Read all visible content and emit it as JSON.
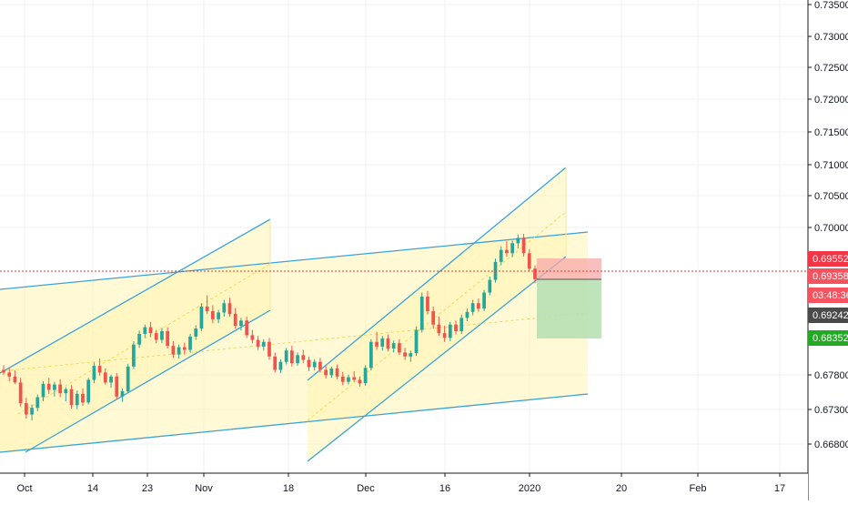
{
  "chart_data": {
    "type": "candlestick",
    "title": "",
    "xlabel": "",
    "ylabel": "",
    "x_ticks": [
      "Oct",
      "14",
      "23",
      "Nov",
      "18",
      "Dec",
      "16",
      "2020",
      "20",
      "Feb",
      "17"
    ],
    "y_ticks": [
      "0.73500",
      "0.73000",
      "0.72500",
      "0.72000",
      "0.71500",
      "0.71000",
      "0.70500",
      "0.70000",
      "0.67800",
      "0.67300",
      "0.66800"
    ],
    "ylim": [
      0.6645,
      0.7355
    ],
    "grid": true,
    "colors": {
      "up": "#26a69a",
      "down": "#ef5350",
      "channel_line": "#3ba3d8",
      "channel_fill": "#fff4b3",
      "channel_mid": "#f5d75a",
      "stop_zone": "#f7a8a8",
      "target_zone": "#b4dfb0",
      "price_line": "#e53935"
    },
    "candles": [
      [
        0.68,
        0.6807,
        0.6792,
        0.6796
      ],
      [
        0.6796,
        0.6803,
        0.6783,
        0.679
      ],
      [
        0.679,
        0.6799,
        0.6779,
        0.6781
      ],
      [
        0.6781,
        0.6788,
        0.6745,
        0.675
      ],
      [
        0.675,
        0.6758,
        0.6727,
        0.6733
      ],
      [
        0.6733,
        0.6748,
        0.6724,
        0.6743
      ],
      [
        0.6743,
        0.6763,
        0.6738,
        0.6759
      ],
      [
        0.6759,
        0.6783,
        0.6753,
        0.6779
      ],
      [
        0.6779,
        0.6788,
        0.6764,
        0.677
      ],
      [
        0.677,
        0.6782,
        0.676,
        0.6778
      ],
      [
        0.6778,
        0.6786,
        0.6759,
        0.6765
      ],
      [
        0.6765,
        0.6774,
        0.6753,
        0.6771
      ],
      [
        0.6771,
        0.6777,
        0.6742,
        0.6747
      ],
      [
        0.6747,
        0.6769,
        0.6741,
        0.6764
      ],
      [
        0.6764,
        0.6772,
        0.6746,
        0.6751
      ],
      [
        0.6751,
        0.6788,
        0.6748,
        0.6785
      ],
      [
        0.6785,
        0.6811,
        0.678,
        0.6806
      ],
      [
        0.6806,
        0.6817,
        0.6791,
        0.6796
      ],
      [
        0.6796,
        0.6802,
        0.6778,
        0.6781
      ],
      [
        0.6781,
        0.6793,
        0.6773,
        0.679
      ],
      [
        0.679,
        0.6795,
        0.6756,
        0.676
      ],
      [
        0.676,
        0.6772,
        0.6752,
        0.6768
      ],
      [
        0.6768,
        0.6809,
        0.6765,
        0.6805
      ],
      [
        0.6805,
        0.6843,
        0.6801,
        0.6838
      ],
      [
        0.6838,
        0.6859,
        0.6833,
        0.6854
      ],
      [
        0.6854,
        0.6868,
        0.6848,
        0.6864
      ],
      [
        0.6864,
        0.6872,
        0.6849,
        0.6855
      ],
      [
        0.6855,
        0.686,
        0.684,
        0.6845
      ],
      [
        0.6845,
        0.6863,
        0.684,
        0.6858
      ],
      [
        0.6858,
        0.6864,
        0.6832,
        0.6836
      ],
      [
        0.6836,
        0.6843,
        0.6818,
        0.6823
      ],
      [
        0.6823,
        0.6838,
        0.6817,
        0.6834
      ],
      [
        0.6834,
        0.6841,
        0.6823,
        0.683
      ],
      [
        0.683,
        0.6854,
        0.6826,
        0.685
      ],
      [
        0.685,
        0.6867,
        0.6845,
        0.6862
      ],
      [
        0.6862,
        0.69,
        0.6858,
        0.6895
      ],
      [
        0.6895,
        0.6912,
        0.6884,
        0.6888
      ],
      [
        0.6888,
        0.6897,
        0.687,
        0.6876
      ],
      [
        0.6876,
        0.689,
        0.687,
        0.6886
      ],
      [
        0.6886,
        0.6905,
        0.688,
        0.69
      ],
      [
        0.69,
        0.6908,
        0.688,
        0.6884
      ],
      [
        0.6884,
        0.6893,
        0.6862,
        0.6866
      ],
      [
        0.6866,
        0.6878,
        0.6859,
        0.6874
      ],
      [
        0.6874,
        0.688,
        0.6848,
        0.6852
      ],
      [
        0.6852,
        0.686,
        0.684,
        0.6845
      ],
      [
        0.6845,
        0.6851,
        0.683,
        0.6835
      ],
      [
        0.6835,
        0.6846,
        0.6829,
        0.6842
      ],
      [
        0.6842,
        0.6848,
        0.6815,
        0.682
      ],
      [
        0.682,
        0.6826,
        0.6796,
        0.68
      ],
      [
        0.68,
        0.6816,
        0.6795,
        0.6812
      ],
      [
        0.6812,
        0.6833,
        0.6808,
        0.6829
      ],
      [
        0.6829,
        0.6836,
        0.6805,
        0.681
      ],
      [
        0.681,
        0.6826,
        0.6806,
        0.6822
      ],
      [
        0.6822,
        0.683,
        0.681,
        0.6815
      ],
      [
        0.6815,
        0.682,
        0.6798,
        0.6804
      ],
      [
        0.6804,
        0.6816,
        0.6799,
        0.6812
      ],
      [
        0.6812,
        0.6818,
        0.6796,
        0.68
      ],
      [
        0.68,
        0.6806,
        0.6787,
        0.6792
      ],
      [
        0.6792,
        0.6805,
        0.6788,
        0.6802
      ],
      [
        0.6802,
        0.6808,
        0.6786,
        0.679
      ],
      [
        0.679,
        0.6797,
        0.6777,
        0.6782
      ],
      [
        0.6782,
        0.6793,
        0.6778,
        0.6789
      ],
      [
        0.6789,
        0.6798,
        0.6782,
        0.6785
      ],
      [
        0.6785,
        0.679,
        0.6775,
        0.678
      ],
      [
        0.678,
        0.6807,
        0.6776,
        0.6803
      ],
      [
        0.6803,
        0.6846,
        0.6799,
        0.6842
      ],
      [
        0.6842,
        0.6857,
        0.683,
        0.6835
      ],
      [
        0.6835,
        0.6851,
        0.6829,
        0.6847
      ],
      [
        0.6847,
        0.6853,
        0.6828,
        0.6832
      ],
      [
        0.6832,
        0.6844,
        0.6826,
        0.684
      ],
      [
        0.684,
        0.6846,
        0.6822,
        0.6826
      ],
      [
        0.6826,
        0.6833,
        0.6815,
        0.682
      ],
      [
        0.682,
        0.6829,
        0.6812,
        0.6825
      ],
      [
        0.6825,
        0.6865,
        0.6821,
        0.686
      ],
      [
        0.686,
        0.6916,
        0.6856,
        0.691
      ],
      [
        0.691,
        0.6918,
        0.6883,
        0.6888
      ],
      [
        0.6888,
        0.6895,
        0.6862,
        0.6868
      ],
      [
        0.6868,
        0.688,
        0.6851,
        0.6855
      ],
      [
        0.6855,
        0.6866,
        0.6842,
        0.6848
      ],
      [
        0.6848,
        0.6872,
        0.6843,
        0.6868
      ],
      [
        0.6868,
        0.6874,
        0.6853,
        0.6858
      ],
      [
        0.6858,
        0.6883,
        0.6854,
        0.6878
      ],
      [
        0.6878,
        0.6892,
        0.6873,
        0.6887
      ],
      [
        0.6887,
        0.6905,
        0.6882,
        0.69
      ],
      [
        0.69,
        0.6907,
        0.6887,
        0.6892
      ],
      [
        0.6892,
        0.692,
        0.6888,
        0.6916
      ],
      [
        0.6916,
        0.694,
        0.6912,
        0.6935
      ],
      [
        0.6935,
        0.6967,
        0.6931,
        0.6962
      ],
      [
        0.6962,
        0.6985,
        0.6957,
        0.698
      ],
      [
        0.698,
        0.6993,
        0.697,
        0.6975
      ],
      [
        0.6975,
        0.6994,
        0.6969,
        0.699
      ],
      [
        0.699,
        0.7003,
        0.6982,
        0.6998
      ],
      [
        0.6998,
        0.7004,
        0.697,
        0.6975
      ],
      [
        0.6975,
        0.6981,
        0.6948,
        0.6952
      ],
      [
        0.6952,
        0.6957,
        0.693,
        0.6936
      ]
    ],
    "annotations": {
      "channels": [
        {
          "name": "left-channel",
          "lines": [
            [
              0.672,
              0.692
            ],
            [
              0.6725,
              0.6925
            ]
          ]
        },
        {
          "name": "right-channel",
          "lines": [
            [
              0.676,
              0.698
            ],
            [
              0.6765,
              0.6985
            ]
          ]
        },
        {
          "name": "wide-channel",
          "lines": [
            [
              0.678,
              0.6965
            ],
            [
              0.6705,
              0.676
            ]
          ]
        }
      ],
      "stop_zone": [
        0.69358,
        0.69552
      ],
      "target_zone": [
        0.68352,
        0.69358
      ]
    },
    "price_labels": [
      {
        "text": "0.69552",
        "bg": "#f23645",
        "fg": "#ffffff"
      },
      {
        "text": "0.69358",
        "bg": "#f7525f",
        "fg": "#ffffff"
      },
      {
        "text": "03:48:36",
        "bg": "#f7525f",
        "fg": "#ffffff"
      },
      {
        "text": "0.69242",
        "bg": "#4a4a4a",
        "fg": "#ffffff"
      },
      {
        "text": "0.68352",
        "bg": "#22ab22",
        "fg": "#ffffff"
      }
    ]
  }
}
